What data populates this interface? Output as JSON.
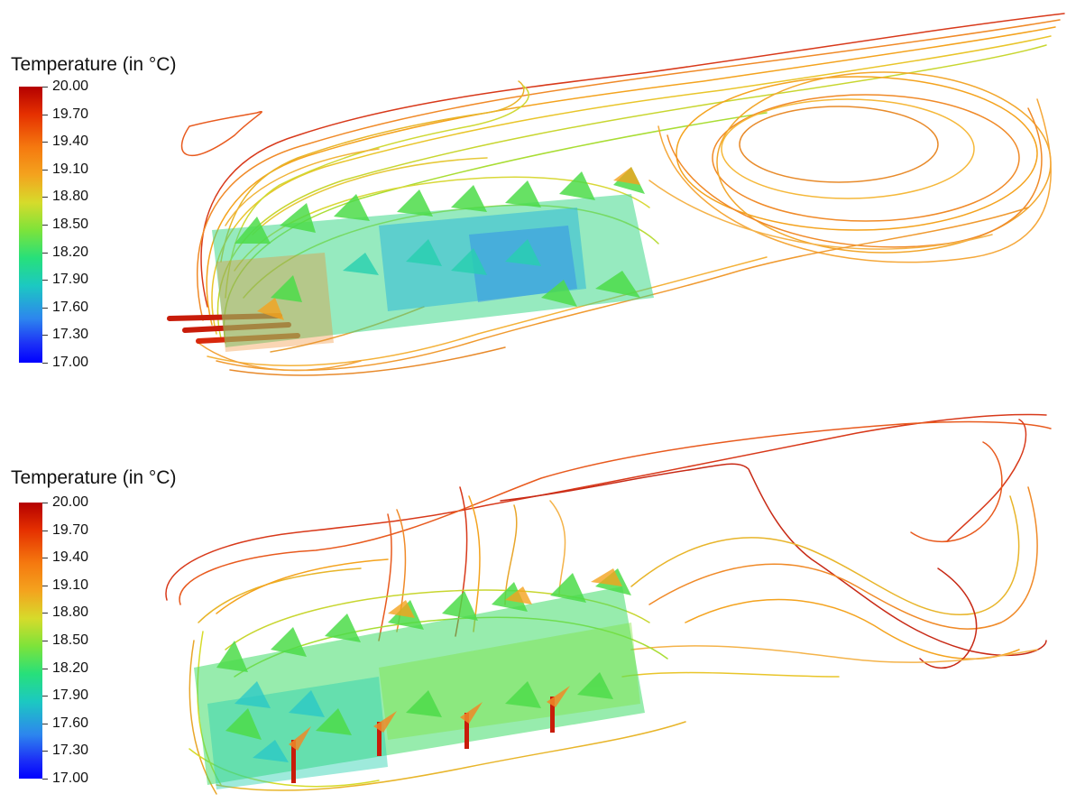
{
  "panels": [
    {
      "legend_title": "Temperature (in °C)",
      "ticks": [
        "20.00",
        "19.70",
        "19.40",
        "19.10",
        "18.80",
        "18.50",
        "18.20",
        "17.90",
        "17.60",
        "17.30",
        "17.00"
      ]
    },
    {
      "legend_title": "Temperature (in °C)",
      "ticks": [
        "20.00",
        "19.70",
        "19.40",
        "19.10",
        "18.80",
        "18.50",
        "18.20",
        "17.90",
        "17.60",
        "17.30",
        "17.00"
      ]
    }
  ],
  "colors": {
    "scale_max": "#b40000",
    "scale_high": "#f5790f",
    "scale_mid_high": "#f4a31e",
    "scale_mid": "#d6db2b",
    "scale_mid_low": "#27e07a",
    "scale_low": "#2d86ee",
    "scale_min": "#0000ff"
  }
}
